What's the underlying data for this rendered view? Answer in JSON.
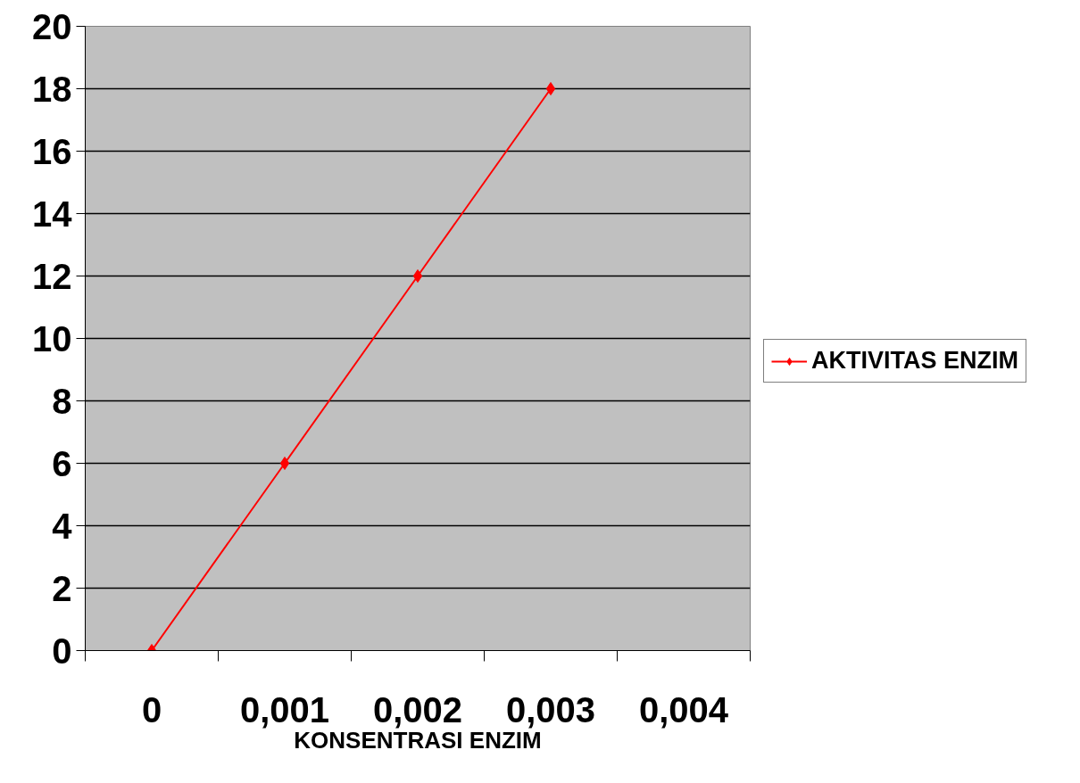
{
  "chart_data": {
    "type": "line",
    "xlabel": "KONSENTRASI ENZIM",
    "categories": [
      "0",
      "0,001",
      "0,002",
      "0,003",
      "0,004"
    ],
    "series": [
      {
        "name": "AKTIVITAS ENZIM",
        "color": "#ff0000",
        "values": [
          0,
          6,
          12,
          18,
          null
        ]
      }
    ],
    "ylim": [
      0,
      20
    ],
    "yticks": [
      0,
      2,
      4,
      6,
      8,
      10,
      12,
      14,
      16,
      18,
      20
    ],
    "grid": "y",
    "legend": "right",
    "marker": "diamond",
    "line_style": "solid"
  }
}
